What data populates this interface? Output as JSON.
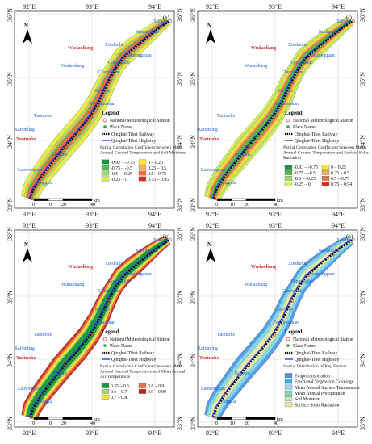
{
  "axes": {
    "x_ticks": [
      "92°E",
      "93°E",
      "94°E"
    ],
    "y_ticks": [
      "36°N",
      "35°N",
      "34°N",
      "33°N"
    ]
  },
  "north_label": "N",
  "scale": {
    "labels": [
      "0",
      "10",
      "20",
      "40"
    ],
    "unit": "km"
  },
  "places_blue": [
    "Xidatan",
    "Kunlunshan",
    "Xieshuihe",
    "Budongquan",
    "Qingshuihe",
    "Wudaoliang",
    "Chumaerhe",
    "Beiluhe",
    "Fenghuoshan",
    "Tuotuohe",
    "Kaixinling",
    "Buqiuhe",
    "Laowenquan",
    "Tanggula"
  ],
  "places_red": [
    "Wudaoliang",
    "Tuotuohe"
  ],
  "legend": {
    "title": "Legend",
    "station": "National Meteorological Station",
    "place": "Place Name",
    "railway": "Qinghai-Tibet Railway",
    "highway": "Qinghai-Tibet Highway"
  },
  "panels": [
    {
      "label": "(e)",
      "subtitle": "Partial Correlation Coefficient between Mean Annual Ground Temperature and Soil Moisture",
      "classes": [
        {
          "label": "-0.92 – -0.75",
          "color": "#1a9641"
        },
        {
          "label": "-0.75 – -0.5",
          "color": "#52b848"
        },
        {
          "label": "-0.5 – -0.25",
          "color": "#a6d96a"
        },
        {
          "label": "-0.25 – 0",
          "color": "#d9ef4b"
        },
        {
          "label": "0 – 0.25",
          "color": "#ffe63a"
        },
        {
          "label": "0.25 – 0.5",
          "color": "#fdae61"
        },
        {
          "label": "0.5 – 0.75",
          "color": "#f46d43"
        },
        {
          "label": "0.75 – 0.95",
          "color": "#d7301f"
        }
      ]
    },
    {
      "label": "(f)",
      "subtitle": "Partial Correlation Coefficient between Mean Annual Ground Temperature and Surface Solar Radiation",
      "classes": [
        {
          "label": "-0.93 – -0.75",
          "color": "#1a9641"
        },
        {
          "label": "-0.75 – -0.5",
          "color": "#52b848"
        },
        {
          "label": "-0.5 – -0.25",
          "color": "#a6d96a"
        },
        {
          "label": "-0.25 – 0",
          "color": "#d9ef4b"
        },
        {
          "label": "0 – 0.25",
          "color": "#ffe63a"
        },
        {
          "label": "0.25 – 0.5",
          "color": "#fdae61"
        },
        {
          "label": "0.5 – 0.75",
          "color": "#f46d43"
        },
        {
          "label": "0.75 – 0.94",
          "color": "#d7301f"
        }
      ]
    },
    {
      "label": "(g)",
      "subtitle": "Partial Correlation Coefficient between Mean Annual Ground Temperature and Mean Annual Air Temperature",
      "classes": [
        {
          "label": "0.55 – 0.6",
          "color": "#1a9641"
        },
        {
          "label": "0.6 – 0.7",
          "color": "#a6d96a"
        },
        {
          "label": "0.7 – 0.8",
          "color": "#ffe63a"
        },
        {
          "label": "0.8 – 0.9",
          "color": "#f46d43"
        },
        {
          "label": "0.9 – 0.99",
          "color": "#c0281a"
        }
      ]
    },
    {
      "label": "(h)",
      "subtitle": "Spatial Distribution of Key Factors",
      "classes": [
        {
          "label": "Evapotranspiration",
          "color": "#5b8fe0"
        },
        {
          "label": "Fractional Vegetation Coverage",
          "color": "#3fb0e8"
        },
        {
          "label": "Mean Annual Surface Temperature",
          "color": "#9fd3f0"
        },
        {
          "label": "Mean Annual Precipitation",
          "color": "#7fd6c9"
        },
        {
          "label": "Soil Moisture",
          "color": "#c6e8b8"
        },
        {
          "label": "Surface Solar Radiation",
          "color": "#f2e6a6"
        }
      ]
    }
  ]
}
